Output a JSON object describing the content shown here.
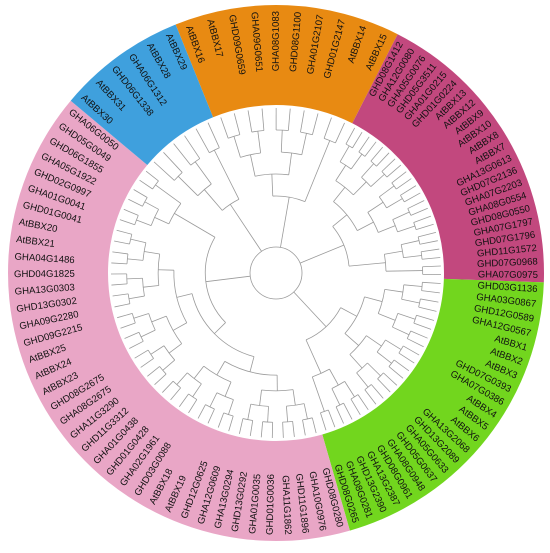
{
  "tree": {
    "clades": [
      {
        "name": "orange",
        "color": "#e88a12",
        "labels": [
          "AtBBX16",
          "AtBBX17",
          "GHD09G0659",
          "GHA09G0651",
          "GHA08G1083",
          "GHD08G1100",
          "GHA01G2107",
          "GHD01G2147",
          "AtBBX14",
          "AtBBX15"
        ]
      },
      {
        "name": "magenta",
        "color": "#c2487e",
        "labels": [
          "GHD08G1412",
          "GHA12G0080",
          "GHA05G0076",
          "GHD05G3511",
          "GHA01G0215",
          "GHD01G0224",
          "AtBBX13",
          "AtBBX12",
          "AtBBX9",
          "AtBBX10",
          "AtBBX8",
          "AtBBX7",
          "GHA13G0613",
          "GHD07G2136",
          "GHA07G2203",
          "GHA08G0554",
          "GHD08G0550",
          "GHA07G1797",
          "GHD07G1796",
          "GHD11G1572",
          "GHD07G0968",
          "GHA07G0975"
        ]
      },
      {
        "name": "green",
        "color": "#72d61e",
        "labels": [
          "GHD03G1136",
          "GHA03G0867",
          "GHD12G0589",
          "GHA12G0567",
          "AtBBX1",
          "AtBBX2",
          "AtBBX3",
          "GHD07G0393",
          "GHA07G0386",
          "AtBBX4",
          "AtBBX5",
          "AtBBX6",
          "GHA13G2068",
          "GHD13G2089",
          "GHA05G0633",
          "GHD05G0637",
          "GHA08G0948",
          "GHD08G0961",
          "GHA13G2387",
          "GHD13G2390",
          "GHA08G0281",
          "GHD08G0265"
        ]
      },
      {
        "name": "pink",
        "color": "#e9a6c6",
        "labels": [
          "GHD08G0280",
          "GHA10G0976",
          "GHD11G1896",
          "GHA11G1862",
          "GHD01G0036",
          "GHA01G0035",
          "GHD13G0292",
          "GHA13G0294",
          "GHA12G0609",
          "GHD12G0625",
          "AtBBX19",
          "AtBBX18",
          "GHD03G0088",
          "GHA02G1961",
          "GHD01G0428",
          "GHA01G0438",
          "GHD11G3312",
          "GHA11G3290",
          "GHA08G2675",
          "GHD08G2675",
          "AtBBX23",
          "AtBBX24",
          "AtBBX25",
          "GHD09G2215",
          "GHA09G2280",
          "GHD13G0302",
          "GHA13G0303",
          "GHD04G1825",
          "GHA04G1486",
          "AtBBX21",
          "AtBBX20",
          "GHD01G0041",
          "GHA01G0041",
          "GHD02G0997",
          "GHA05G1922",
          "GHD06G1855",
          "GHD05G0049",
          "GHA06G0050"
        ]
      },
      {
        "name": "blue",
        "color": "#3fa0dd",
        "labels": [
          "AtBBX30",
          "AtBBX31",
          "GHD06G1338",
          "GHA06G1312",
          "AtBBX28",
          "AtBBX29"
        ]
      }
    ]
  }
}
